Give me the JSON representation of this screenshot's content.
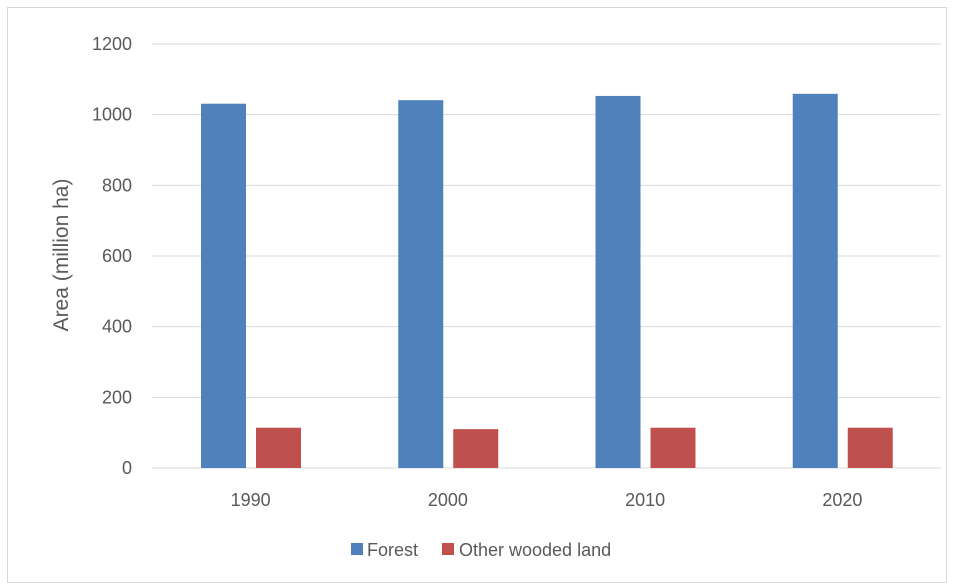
{
  "chart_data": {
    "type": "bar",
    "categories": [
      "1990",
      "2000",
      "2010",
      "2020"
    ],
    "series": [
      {
        "name": "Forest",
        "values": [
          1031,
          1041,
          1053,
          1059
        ],
        "color": "#4f81bd"
      },
      {
        "name": "Other wooded land",
        "values": [
          114,
          110,
          114,
          114
        ],
        "color": "#c0504d"
      }
    ],
    "ylabel": "Area (million ha)",
    "xlabel": "",
    "ylim": [
      0,
      1200
    ],
    "yticks": [
      "0",
      "200",
      "400",
      "600",
      "800",
      "1000",
      "1200"
    ],
    "grid": true,
    "legend": "bottom"
  }
}
